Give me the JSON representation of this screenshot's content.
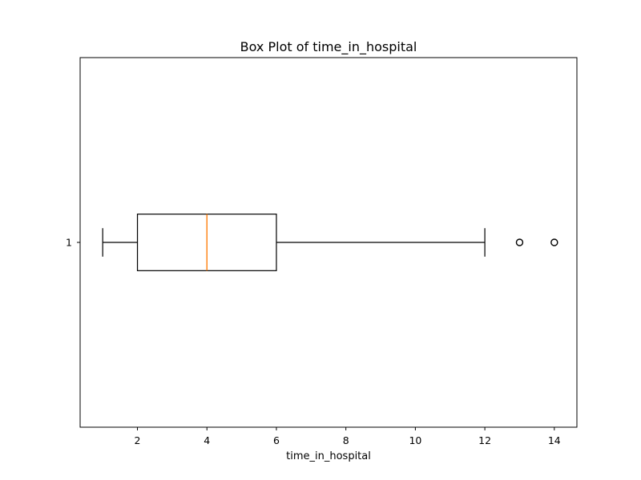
{
  "chart_data": {
    "type": "boxplot",
    "title": "Box Plot of time_in_hospital",
    "xlabel": "time_in_hospital",
    "ylabel": "",
    "orientation": "horizontal",
    "xlim": [
      0.35,
      14.65
    ],
    "ylim": [
      0.5,
      1.5
    ],
    "x_ticks": [
      2,
      4,
      6,
      8,
      10,
      12,
      14
    ],
    "y_ticks": [
      1
    ],
    "grid": false,
    "box": {
      "label": "1",
      "position": 1,
      "whisker_low": 1,
      "q1": 2,
      "median": 4,
      "q3": 6,
      "whisker_high": 12,
      "outliers": [
        13,
        14
      ]
    },
    "colors": {
      "box": "#000000",
      "median": "#ff7f0e",
      "outliers": "#000000"
    }
  }
}
